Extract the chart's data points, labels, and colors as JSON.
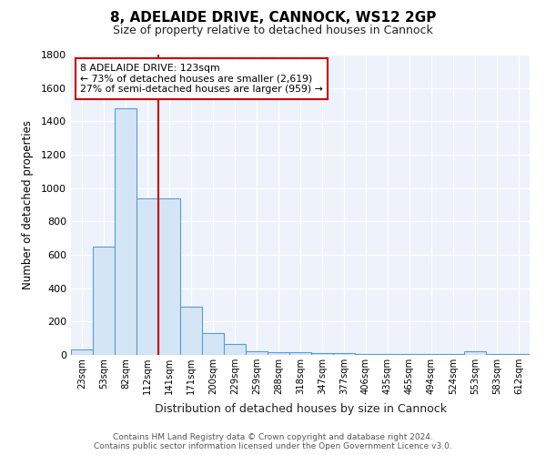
{
  "title1": "8, ADELAIDE DRIVE, CANNOCK, WS12 2GP",
  "title2": "Size of property relative to detached houses in Cannock",
  "xlabel": "Distribution of detached houses by size in Cannock",
  "ylabel": "Number of detached properties",
  "bin_labels": [
    "23sqm",
    "53sqm",
    "82sqm",
    "112sqm",
    "141sqm",
    "171sqm",
    "200sqm",
    "229sqm",
    "259sqm",
    "288sqm",
    "318sqm",
    "347sqm",
    "377sqm",
    "406sqm",
    "435sqm",
    "465sqm",
    "494sqm",
    "524sqm",
    "553sqm",
    "583sqm",
    "612sqm"
  ],
  "bar_heights": [
    35,
    650,
    1480,
    940,
    940,
    290,
    130,
    65,
    20,
    15,
    15,
    10,
    10,
    5,
    5,
    5,
    5,
    5,
    20,
    5,
    5
  ],
  "bar_color": "#d4e6f5",
  "bar_edge_color": "#5b9bd5",
  "vline_x_index": 3,
  "vline_color": "#cc0000",
  "annotation_line1": "8 ADELAIDE DRIVE: 123sqm",
  "annotation_line2": "← 73% of detached houses are smaller (2,619)",
  "annotation_line3": "27% of semi-detached houses are larger (959) →",
  "annotation_box_color": "#ffffff",
  "annotation_box_edge": "#cc0000",
  "ylim": [
    0,
    1800
  ],
  "yticks": [
    0,
    200,
    400,
    600,
    800,
    1000,
    1200,
    1400,
    1600,
    1800
  ],
  "footer1": "Contains HM Land Registry data © Crown copyright and database right 2024.",
  "footer2": "Contains public sector information licensed under the Open Government Licence v3.0.",
  "plot_bg_color": "#edf2fb"
}
